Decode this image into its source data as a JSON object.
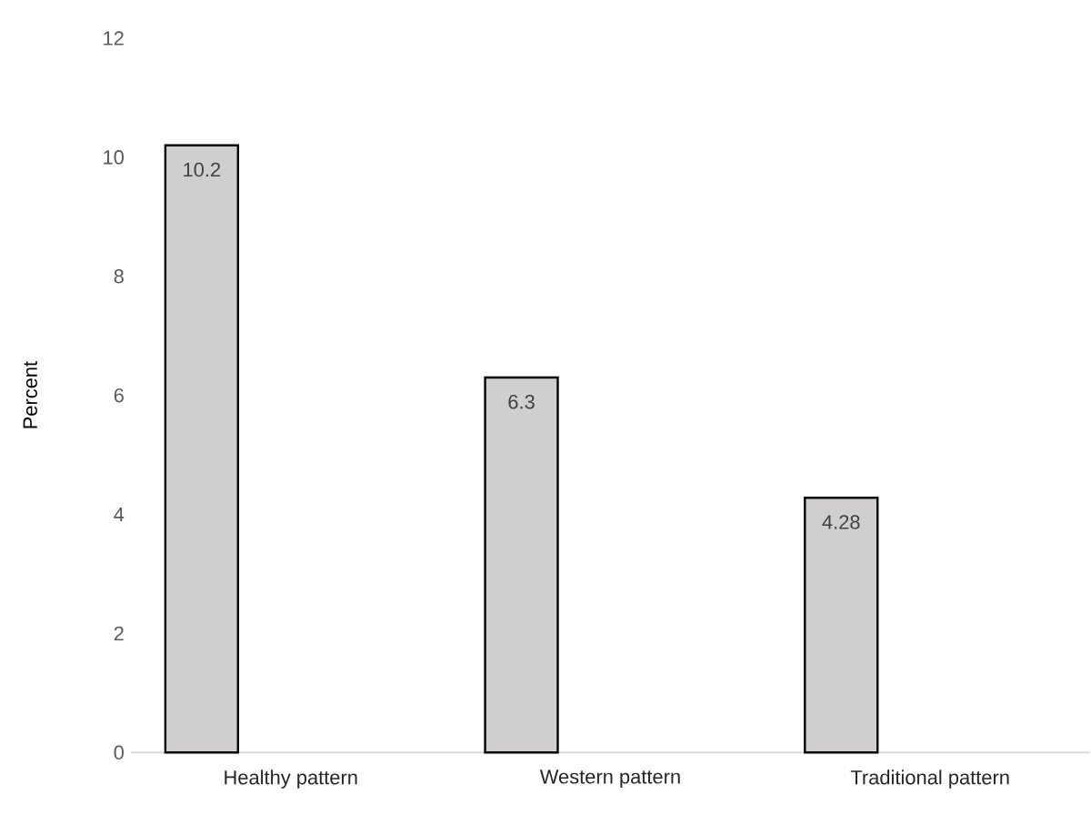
{
  "chart_data": {
    "type": "bar",
    "ylabel": "Percent",
    "categories": [
      "Healthy pattern",
      "Western pattern",
      "Traditional pattern"
    ],
    "values": [
      10.2,
      6.3,
      4.28
    ],
    "color": "#d0cece",
    "value_labels": [
      "10.2",
      "6.3",
      "4.28"
    ],
    "ylim": [
      0,
      12
    ],
    "yticks": [
      0,
      2,
      4,
      6,
      8,
      10,
      12
    ]
  }
}
